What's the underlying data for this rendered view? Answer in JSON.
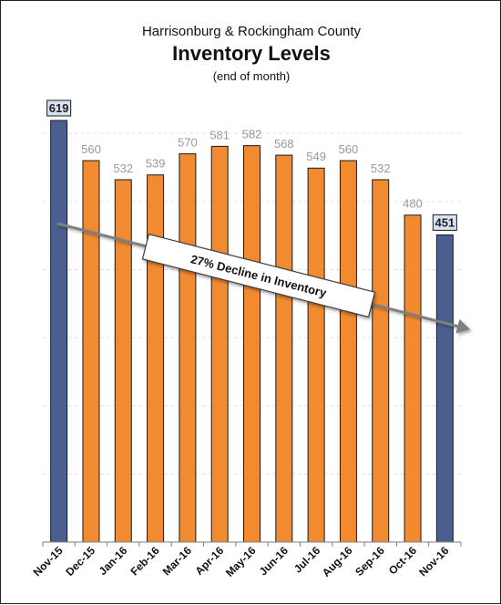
{
  "header": {
    "subtitle_top": "Harrisonburg & Rockingham County",
    "title": "Inventory Levels",
    "subtitle_bottom": "(end of month)"
  },
  "annotation": {
    "text": "27% Decline in Inventory"
  },
  "colors": {
    "highlight_bar": "#4a5f90",
    "bar": "#f28a30",
    "bar_outline": "#1a1a1a",
    "arrow": "#7f7f7f",
    "value_label": "#999999",
    "label_box": "#d9e2f3",
    "gridline": "#e3e3e3"
  },
  "chart_data": {
    "type": "bar",
    "title": "Inventory Levels",
    "subtitle": "Harrisonburg & Rockingham County",
    "note": "(end of month)",
    "categories": [
      "Nov-15",
      "Dec-15",
      "Jan-16",
      "Feb-16",
      "Mar-16",
      "Apr-16",
      "May-16",
      "Jun-16",
      "Jul-16",
      "Aug-16",
      "Sep-16",
      "Oct-16",
      "Nov-16"
    ],
    "values": [
      619,
      560,
      532,
      539,
      570,
      581,
      582,
      568,
      549,
      560,
      532,
      480,
      451
    ],
    "value_labels": [
      "619",
      "560",
      "532",
      "539",
      "570",
      "581",
      "582",
      "568",
      "549",
      "560",
      "532",
      "480",
      "451"
    ],
    "highlighted": [
      "Nov-15",
      "Nov-16"
    ],
    "ylim": [
      0,
      650
    ],
    "grid": true,
    "legend": "none",
    "annotation": "27% Decline in Inventory"
  }
}
